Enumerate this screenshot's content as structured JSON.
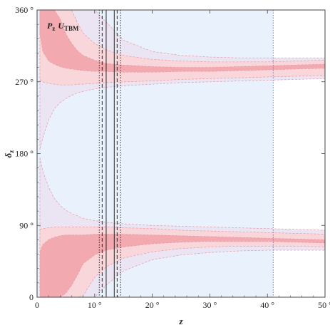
{
  "chart_data": {
    "type": "area",
    "plot_label": {
      "main": "P",
      "main_sub": "z",
      "second": "U",
      "second_sub": "TBM"
    },
    "xlabel": "z",
    "ylabel": "δ",
    "ylabel_sub": "z",
    "xlim": [
      0,
      50
    ],
    "ylim": [
      0,
      360
    ],
    "x_ticks": [
      {
        "value": 0,
        "label": "0"
      },
      {
        "value": 10,
        "label": "10 °"
      },
      {
        "value": 20,
        "label": "20 °"
      },
      {
        "value": 30,
        "label": "30 °"
      },
      {
        "value": 40,
        "label": "40 °"
      },
      {
        "value": 50,
        "label": "50 °"
      }
    ],
    "y_ticks": [
      {
        "value": 0,
        "label": "0"
      },
      {
        "value": 90,
        "label": "90 °"
      },
      {
        "value": 180,
        "label": "180 °"
      },
      {
        "value": 270,
        "label": "270 °"
      },
      {
        "value": 360,
        "label": "360 °"
      }
    ],
    "shaded_region": {
      "x_range": [
        0,
        41
      ],
      "color": "#e9f2fc"
    },
    "vertical_lines": [
      {
        "x": 10.8,
        "style": "dotted"
      },
      {
        "x": 11.3,
        "style": "dashed"
      },
      {
        "x": 12.0,
        "style": "solid"
      },
      {
        "x": 13.4,
        "style": "solid"
      },
      {
        "x": 13.9,
        "style": "dashed"
      },
      {
        "x": 14.5,
        "style": "dotted"
      },
      {
        "x": 41.0,
        "style": "dotted",
        "color": "#4a6fd6"
      }
    ],
    "series": [
      {
        "band": "1-sigma",
        "color": "#f2a9b0",
        "x": [
          0.5,
          1,
          2,
          3,
          4,
          5,
          6,
          7,
          8,
          10,
          12,
          15,
          20,
          25,
          30,
          35,
          40,
          45,
          50
        ],
        "upper_low": [
          331,
          308,
          296,
          292,
          289,
          287,
          286,
          285,
          284,
          283,
          283,
          282,
          282,
          283,
          283,
          284,
          285,
          286,
          287
        ],
        "upper_high": [
          360,
          360,
          360,
          360,
          349,
          330,
          318,
          309,
          303,
          297,
          293,
          291,
          289,
          288,
          288,
          289,
          290,
          291,
          292
        ],
        "lower_low": [
          0,
          0,
          0,
          0,
          0,
          5,
          15,
          28,
          42,
          53,
          59,
          63,
          67,
          69,
          70,
          70,
          70,
          69,
          68
        ],
        "lower_high": [
          57,
          66,
          72,
          75,
          77,
          78,
          78,
          78,
          78,
          79,
          79,
          79,
          78,
          77,
          76,
          75,
          74,
          73,
          72
        ]
      },
      {
        "band": "2-sigma",
        "color": "#f9d6da",
        "x": [
          0.5,
          1,
          2,
          3,
          4,
          5,
          6,
          7,
          8,
          10,
          12,
          15,
          20,
          25,
          30,
          35,
          40,
          45,
          50
        ],
        "upper_low": [
          273,
          270,
          268,
          267,
          266,
          266,
          266,
          267,
          267,
          268,
          269,
          270,
          271,
          273,
          274,
          275,
          276,
          277,
          278
        ],
        "upper_high": [
          360,
          360,
          360,
          360,
          360,
          360,
          360,
          344,
          331,
          318,
          310,
          303,
          298,
          296,
          295,
          295,
          295,
          296,
          297
        ],
        "lower_low": [
          0,
          0,
          0,
          0,
          0,
          0,
          0,
          0,
          2,
          25,
          38,
          49,
          57,
          61,
          63,
          64,
          64,
          64,
          63
        ],
        "lower_high": [
          85,
          86,
          87,
          88,
          88,
          88,
          88,
          88,
          88,
          88,
          88,
          87,
          86,
          84,
          83,
          82,
          81,
          80,
          79
        ]
      },
      {
        "band": "3-sigma",
        "color": "#ebe4f2",
        "x": [
          0.5,
          1,
          2,
          3,
          4,
          5,
          6,
          7,
          8,
          10,
          12,
          15,
          20,
          25,
          30,
          35,
          40,
          45,
          50
        ],
        "upper_low": [
          185,
          200,
          222,
          236,
          244,
          249,
          253,
          256,
          258,
          261,
          263,
          265,
          267,
          269,
          270,
          271,
          272,
          273,
          274
        ],
        "upper_high": [
          360,
          360,
          360,
          360,
          360,
          360,
          360,
          360,
          360,
          360,
          345,
          322,
          308,
          303,
          301,
          300,
          300,
          300,
          300
        ],
        "lower_low": [
          0,
          0,
          0,
          0,
          0,
          0,
          0,
          0,
          0,
          0,
          15,
          33,
          47,
          53,
          56,
          58,
          59,
          59,
          59
        ],
        "lower_high": [
          175,
          158,
          138,
          124,
          115,
          109,
          105,
          102,
          99,
          96,
          94,
          92,
          90,
          89,
          88,
          87,
          86,
          85,
          84
        ]
      }
    ]
  }
}
